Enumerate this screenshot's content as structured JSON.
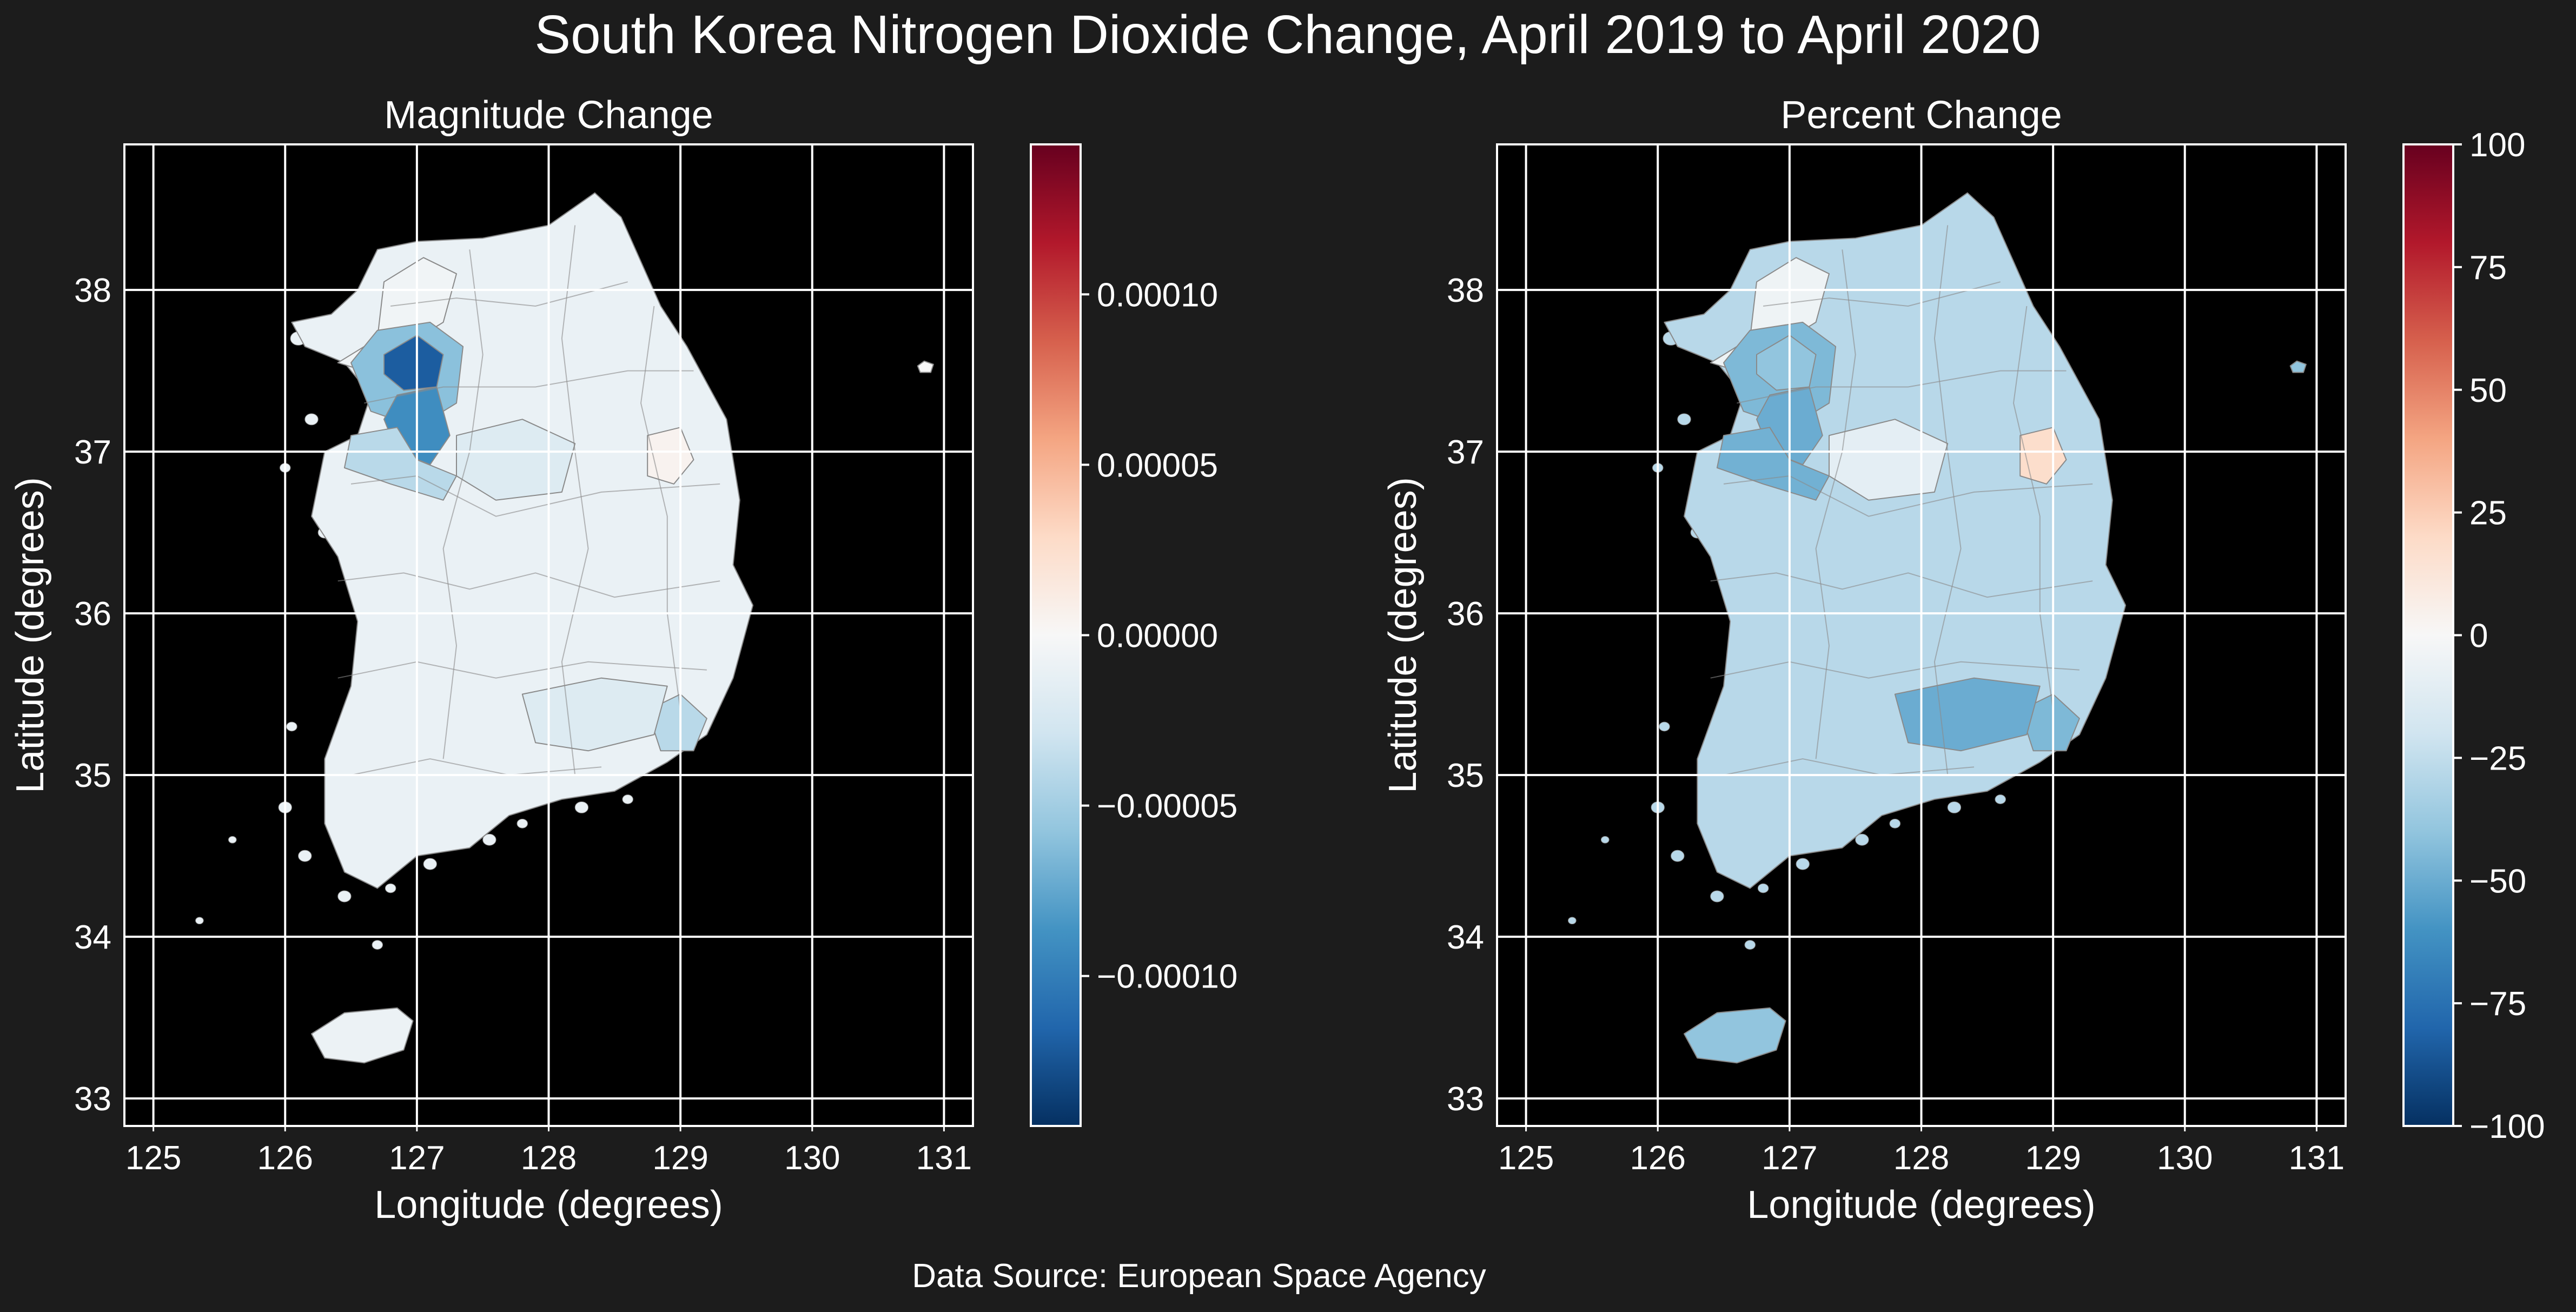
{
  "figure": {
    "title": "South Korea Nitrogen Dioxide Change, April 2019 to April 2020",
    "source": "Data Source: European Space Agency"
  },
  "colors": {
    "figure_bg": "#1c1c1c",
    "axes_bg": "#000000",
    "grid": "#ffffff",
    "boundary": "#8a8a8a",
    "colormap": "RdBu_r",
    "colormap_stops": [
      "#053061",
      "#2166ac",
      "#4393c3",
      "#92c5de",
      "#d1e5f0",
      "#f7f7f7",
      "#fddbc7",
      "#f4a582",
      "#d6604d",
      "#b2182b",
      "#67001f"
    ]
  },
  "panels": [
    {
      "title": "Magnitude Change",
      "xlabel": "Longitude (degrees)",
      "ylabel": "Latitude (degrees)",
      "xlim": [
        124.78,
        131.22
      ],
      "ylim": [
        32.83,
        38.9
      ],
      "xticks": [
        "125",
        "126",
        "127",
        "128",
        "129",
        "130",
        "131"
      ],
      "yticks": [
        "33",
        "34",
        "35",
        "36",
        "37",
        "38"
      ],
      "colorbar": {
        "range": [
          -0.000144,
          0.000144
        ],
        "ticks": [
          {
            "value": 0.0001,
            "label": "0.00010"
          },
          {
            "value": 5e-05,
            "label": "0.00005"
          },
          {
            "value": 0.0,
            "label": "0.00000"
          },
          {
            "value": -5e-05,
            "label": "−0.00005"
          },
          {
            "value": -0.0001,
            "label": "−0.00010"
          }
        ]
      },
      "regions": [
        {
          "region": "mainland",
          "value": -1e-05
        },
        {
          "region": "northwest-coast",
          "value": -5e-06
        },
        {
          "region": "seoul-metro-ring",
          "value": -6e-05
        },
        {
          "region": "seoul-metro-core",
          "value": -0.00012
        },
        {
          "region": "incheon-gyeonggi-south",
          "value": -9e-05
        },
        {
          "region": "gyeonggi-west",
          "value": -4e-05
        },
        {
          "region": "chungcheong-north",
          "value": -2e-05
        },
        {
          "region": "gyeongbuk-inland",
          "value": 5e-06
        },
        {
          "region": "busan-ulsan",
          "value": -4e-05
        },
        {
          "region": "southeast",
          "value": -2e-05
        },
        {
          "region": "jeju",
          "value": -8e-06
        },
        {
          "region": "ulleungdo",
          "value": 0.0
        }
      ]
    },
    {
      "title": "Percent Change",
      "xlabel": "Longitude (degrees)",
      "ylabel": "Latitude (degrees)",
      "xlim": [
        124.78,
        131.22
      ],
      "ylim": [
        32.83,
        38.9
      ],
      "xticks": [
        "125",
        "126",
        "127",
        "128",
        "129",
        "130",
        "131"
      ],
      "yticks": [
        "33",
        "34",
        "35",
        "36",
        "37",
        "38"
      ],
      "colorbar": {
        "range": [
          -100,
          100
        ],
        "ticks": [
          {
            "value": 100,
            "label": "100"
          },
          {
            "value": 75,
            "label": "75"
          },
          {
            "value": 50,
            "label": "50"
          },
          {
            "value": 25,
            "label": "25"
          },
          {
            "value": 0,
            "label": "0"
          },
          {
            "value": -25,
            "label": "−25"
          },
          {
            "value": -50,
            "label": "−50"
          },
          {
            "value": -75,
            "label": "−75"
          },
          {
            "value": -100,
            "label": "−100"
          }
        ]
      },
      "regions": [
        {
          "region": "mainland",
          "value": -28
        },
        {
          "region": "northwest-coast",
          "value": -5
        },
        {
          "region": "seoul-metro-ring",
          "value": -45
        },
        {
          "region": "seoul-metro-core",
          "value": -40
        },
        {
          "region": "incheon-gyeonggi-south",
          "value": -50
        },
        {
          "region": "gyeonggi-west",
          "value": -48
        },
        {
          "region": "chungcheong-north",
          "value": -10
        },
        {
          "region": "gyeongbuk-inland",
          "value": 18
        },
        {
          "region": "busan-ulsan",
          "value": -45
        },
        {
          "region": "southeast",
          "value": -50
        },
        {
          "region": "jeju",
          "value": -40
        },
        {
          "region": "ulleungdo",
          "value": -40
        }
      ]
    }
  ]
}
